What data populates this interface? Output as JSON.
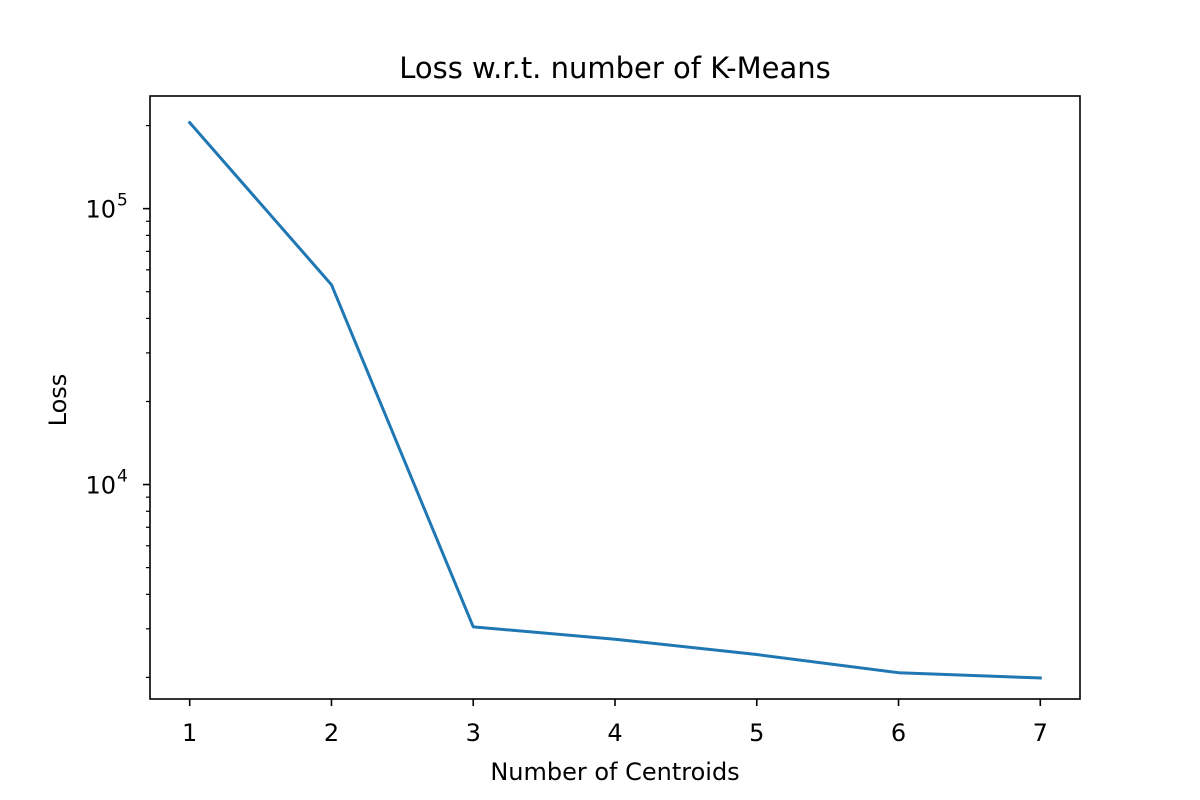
{
  "chart_data": {
    "type": "line",
    "title": "Loss w.r.t. number of K-Means",
    "xlabel": "Number of Centroids",
    "ylabel": "Loss",
    "x": [
      1,
      2,
      3,
      4,
      5,
      6,
      7
    ],
    "series": [
      {
        "values": [
          205000,
          53000,
          3050,
          2750,
          2420,
          2080,
          1990
        ],
        "color": "#1f77b4"
      }
    ],
    "xticks": [
      "1",
      "2",
      "3",
      "4",
      "5",
      "6",
      "7"
    ],
    "yticks": [
      {
        "value": 10000,
        "base": "10",
        "exp": "4"
      },
      {
        "value": 100000,
        "base": "10",
        "exp": "5"
      }
    ],
    "yscale": "log",
    "xlim": [
      0.72,
      7.28
    ],
    "ylim": [
      1670,
      256000
    ],
    "grid": false,
    "legend": "none"
  }
}
